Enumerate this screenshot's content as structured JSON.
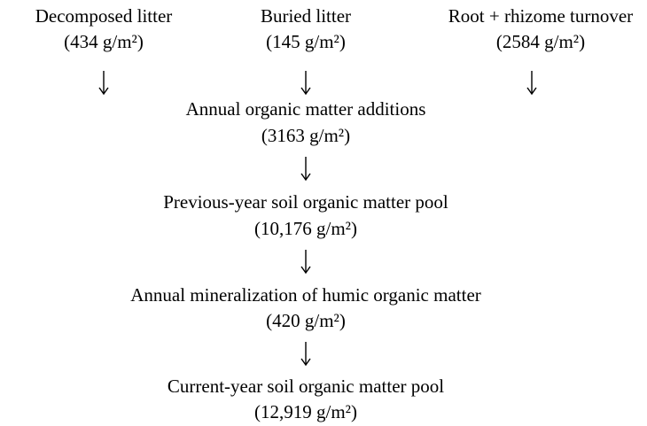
{
  "nodes": [
    {
      "label": "Decomposed litter",
      "value": "(434 g/m²)"
    },
    {
      "label": "Buried litter",
      "value": "(145 g/m²)"
    },
    {
      "label": "Root + rhizome turnover",
      "value": "(2584 g/m²)"
    },
    {
      "label": "Annual organic matter additions",
      "value": "(3163 g/m²)"
    },
    {
      "label": "Previous-year soil organic matter pool",
      "value": "(10,176 g/m²)"
    },
    {
      "label": "Annual mineralization of humic organic matter",
      "value": "(420 g/m²)"
    },
    {
      "label": "Current-year soil organic matter pool",
      "value": "(12,919 g/m²)"
    }
  ]
}
